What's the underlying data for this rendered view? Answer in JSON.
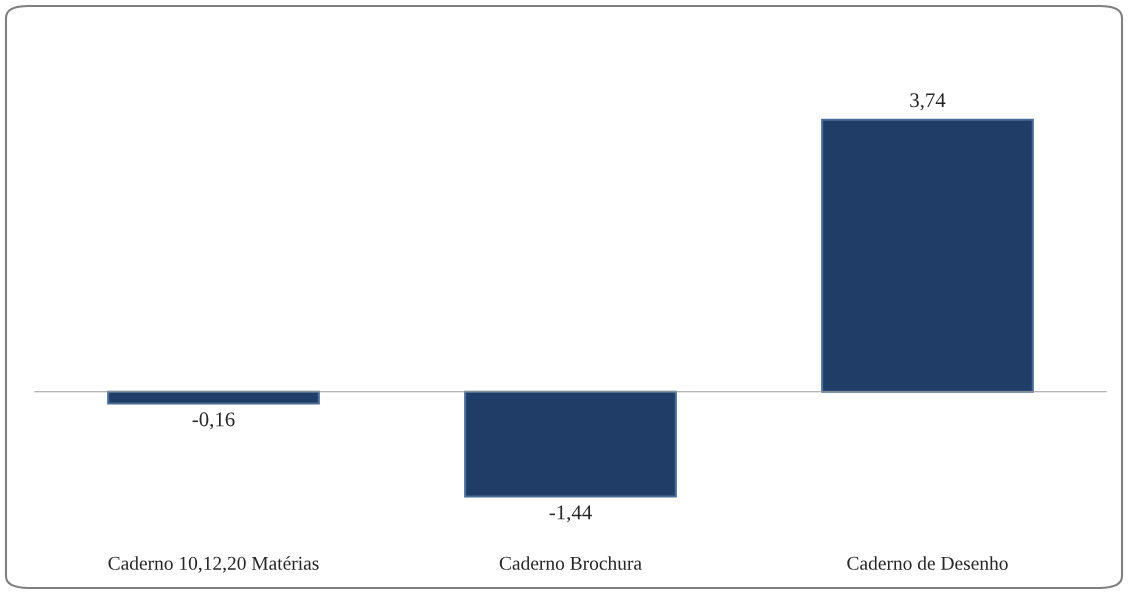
{
  "chart_data": {
    "type": "bar",
    "categories": [
      "Caderno 10,12,20 Matérias",
      "Caderno Brochura",
      "Caderno de Desenho"
    ],
    "values": [
      -0.16,
      -1.44,
      3.74
    ],
    "value_labels": [
      "-0,16",
      "-1,44",
      "3,74"
    ],
    "color": "#1f3d66",
    "legend": false
  }
}
